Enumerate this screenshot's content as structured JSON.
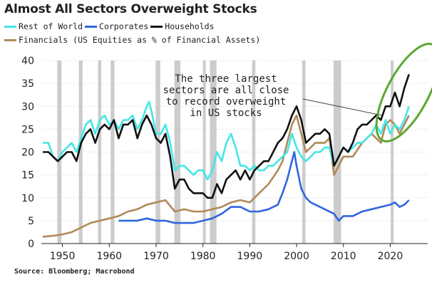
{
  "title": "Almost All Sectors Overweight Stocks",
  "source": "Source: Bloomberg; Macrobond",
  "annotation": [
    "The three largest",
    "sectors are all close",
    "to record overweight",
    "in US stocks"
  ],
  "colors": {
    "rest_of_world": "#45e6e6",
    "corporates": "#2f66e0",
    "households": "#111111",
    "financials": "#b0895a",
    "recession": "#cccccc",
    "highlight": "#5aa832"
  },
  "chart_data": {
    "type": "line",
    "title": "Almost All Sectors Overweight Stocks",
    "xlim": [
      1945.5,
      2028
    ],
    "ylim": [
      0,
      40
    ],
    "xticks": [
      1950,
      1960,
      1970,
      1980,
      1990,
      2000,
      2010,
      2020
    ],
    "yticks": [
      0,
      5,
      10,
      15,
      20,
      25,
      30,
      35,
      40
    ],
    "grid": true,
    "legend_position": "top-left",
    "recessions": [
      [
        1948.9,
        1949.8
      ],
      [
        1953.5,
        1954.3
      ],
      [
        1957.6,
        1958.3
      ],
      [
        1960.3,
        1961.1
      ],
      [
        1969.9,
        1970.9
      ],
      [
        1973.9,
        1975.2
      ],
      [
        1980.0,
        1980.5
      ],
      [
        1981.5,
        1982.9
      ],
      [
        1990.5,
        1991.2
      ],
      [
        2001.2,
        2001.9
      ],
      [
        2007.9,
        2009.5
      ],
      [
        2020.1,
        2020.4
      ]
    ],
    "series": [
      {
        "name": "Rest of World",
        "color": "#45e6e6",
        "x": [
          1945.8,
          1947,
          1948,
          1949,
          1950,
          1951,
          1952,
          1953,
          1954,
          1955,
          1956,
          1957,
          1958,
          1959,
          1960,
          1961,
          1962,
          1963,
          1964,
          1965,
          1966,
          1967,
          1968,
          1968.5,
          1969,
          1970,
          1971,
          1972,
          1973,
          1974,
          1975,
          1976,
          1977,
          1978,
          1979,
          1980,
          1981,
          1982,
          1983,
          1984,
          1985,
          1986,
          1987,
          1988,
          1989,
          1990,
          1991,
          1992,
          1993,
          1994,
          1995,
          1996,
          1997,
          1998,
          1999,
          2000,
          2001,
          2002,
          2003,
          2004,
          2005,
          2006,
          2007,
          2008,
          2009,
          2010,
          2011,
          2012,
          2013,
          2014,
          2015,
          2016,
          2017,
          2018,
          2019,
          2020,
          2021,
          2022,
          2023,
          2024
        ],
        "y": [
          22,
          22,
          19,
          18,
          20,
          21,
          22,
          20,
          23,
          26,
          27,
          24,
          27,
          28,
          26,
          27,
          25,
          27,
          27,
          28,
          25,
          27,
          30,
          31,
          29,
          24,
          24,
          26,
          22,
          16,
          17,
          17,
          16,
          15,
          16,
          16,
          14,
          16,
          20,
          18,
          22,
          24,
          21,
          17,
          17,
          16,
          17,
          16,
          16,
          17,
          17,
          18,
          19,
          20,
          24,
          21,
          19,
          18,
          19,
          20,
          20,
          21,
          21,
          17,
          19,
          21,
          20,
          21,
          22,
          22,
          23,
          24,
          26,
          24,
          27,
          24,
          26,
          25,
          27,
          30
        ]
      },
      {
        "name": "Corporates",
        "color": "#2f66e0",
        "x": [
          1962,
          1964,
          1966,
          1968,
          1970,
          1972,
          1974,
          1976,
          1978,
          1980,
          1982,
          1984,
          1986,
          1988,
          1990,
          1992,
          1994,
          1996,
          1997,
          1998,
          1999,
          1999.5,
          2000,
          2001,
          2002,
          2003,
          2005,
          2008,
          2009,
          2010,
          2012,
          2014,
          2016,
          2018,
          2020,
          2021,
          2022,
          2023,
          2024
        ],
        "y": [
          5,
          5,
          5,
          5.5,
          5,
          5,
          4.5,
          4.5,
          4.5,
          5,
          5.5,
          6.5,
          8,
          8,
          7,
          7,
          7.5,
          8.5,
          11,
          14,
          18,
          20,
          17,
          12,
          10,
          9,
          8,
          6.5,
          5,
          6,
          6,
          7,
          7.5,
          8,
          8.5,
          9,
          8,
          8.5,
          9.5
        ]
      },
      {
        "name": "Households",
        "color": "#111111",
        "x": [
          1945.8,
          1947,
          1948,
          1949,
          1950,
          1951,
          1952,
          1953,
          1954,
          1955,
          1956,
          1957,
          1958,
          1959,
          1960,
          1961,
          1962,
          1963,
          1964,
          1965,
          1966,
          1967,
          1968,
          1969,
          1970,
          1971,
          1972,
          1973,
          1974,
          1975,
          1976,
          1977,
          1978,
          1979,
          1980,
          1981,
          1982,
          1983,
          1984,
          1985,
          1986,
          1987,
          1988,
          1989,
          1990,
          1991,
          1992,
          1993,
          1994,
          1995,
          1996,
          1997,
          1998,
          1999,
          2000,
          2001,
          2002,
          2003,
          2004,
          2005,
          2006,
          2007,
          2008,
          2009,
          2010,
          2011,
          2012,
          2013,
          2014,
          2015,
          2016,
          2017,
          2018,
          2019,
          2020,
          2021,
          2022,
          2023,
          2024
        ],
        "y": [
          20,
          20,
          19,
          18,
          19,
          20,
          20,
          18,
          22,
          24,
          25,
          22,
          25,
          26,
          25,
          27,
          23,
          26,
          26,
          27,
          23,
          26,
          28,
          26,
          23,
          22,
          24,
          19,
          12,
          14,
          14,
          12,
          11,
          11,
          11,
          10,
          10,
          13,
          11,
          14,
          15,
          16,
          14,
          16,
          14,
          16,
          17,
          18,
          18,
          20,
          22,
          23,
          25,
          28,
          30,
          27,
          22,
          23,
          24,
          24,
          25,
          24,
          17,
          19,
          21,
          20,
          22,
          25,
          26,
          26,
          27,
          28,
          27,
          30,
          30,
          33,
          30,
          34,
          37
        ]
      },
      {
        "name": "Financials (US Equities as % of Financial Assets)",
        "color": "#b0895a",
        "x": [
          1945.8,
          1948,
          1950,
          1952,
          1954,
          1956,
          1958,
          1960,
          1962,
          1964,
          1966,
          1968,
          1970,
          1972,
          1974,
          1976,
          1978,
          1980,
          1982,
          1984,
          1986,
          1988,
          1990,
          1992,
          1994,
          1996,
          1997,
          1998,
          1999,
          2000,
          2001,
          2002,
          2003,
          2004,
          2006,
          2007,
          2008,
          2009,
          2010,
          2012,
          2014,
          2016,
          2018,
          2019,
          2020,
          2021,
          2022,
          2023,
          2024
        ],
        "y": [
          1.5,
          1.7,
          2,
          2.5,
          3.5,
          4.5,
          5,
          5.5,
          6,
          7,
          7.5,
          8.5,
          9,
          9.5,
          7,
          7.5,
          7,
          7,
          7.5,
          8,
          9,
          9.5,
          9,
          11,
          13,
          16,
          18,
          22,
          26,
          28,
          24,
          20,
          21,
          22,
          22,
          23,
          15,
          17,
          19,
          19,
          22,
          24,
          22,
          26,
          27,
          26,
          24,
          26,
          28
        ]
      }
    ]
  }
}
